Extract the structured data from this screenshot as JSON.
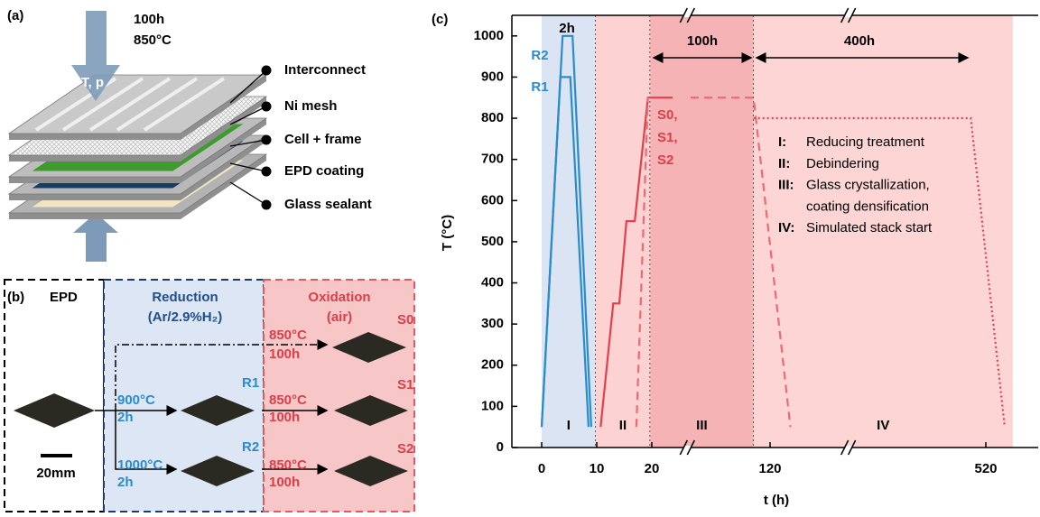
{
  "panel_a": {
    "label": "(a)",
    "time": "100h",
    "temperature": "850°C",
    "load": "T, p",
    "layers": [
      "Interconnect",
      "Ni mesh",
      "Cell + frame",
      "EPD coating",
      "Glass sealant"
    ]
  },
  "panel_b": {
    "label": "(b)",
    "sections": [
      {
        "title": "EPD"
      },
      {
        "title": "Reduction",
        "subtitle": "(Ar/2.9%H₂)"
      },
      {
        "title": "Oxidation",
        "subtitle": "(air)"
      }
    ],
    "scale_bar": "20mm",
    "reduced": [
      {
        "label": "R1",
        "conditions": [
          "900°C",
          "2h"
        ]
      },
      {
        "label": "R2",
        "conditions": [
          "1000°C",
          "2h"
        ]
      }
    ],
    "oxidized": [
      {
        "label": "S0",
        "conditions": [
          "850°C",
          "100h"
        ]
      },
      {
        "label": "S1",
        "conditions": [
          "850°C",
          "100h"
        ]
      },
      {
        "label": "S2",
        "conditions": [
          "850°C",
          "100h"
        ]
      }
    ]
  },
  "chart_data": {
    "type": "line",
    "panel_label": "(c)",
    "x_label": "t (h)",
    "y_label": "T (°C)",
    "xlim": [
      -5,
      617
    ],
    "ylim": [
      0,
      1050
    ],
    "xticks": [
      0,
      10,
      20,
      120,
      520
    ],
    "yticks": [
      0,
      100,
      200,
      300,
      400,
      500,
      600,
      700,
      800,
      900,
      1000
    ],
    "axis_breaks": [
      50,
      265
    ],
    "regions": [
      {
        "label": "I",
        "x": [
          0,
          9.8
        ],
        "color": "#dbe4f3"
      },
      {
        "label": "II",
        "x": [
          9.8,
          19.7
        ],
        "color": "#fcd2d2"
      },
      {
        "label": "III",
        "x": [
          19.7,
          106
        ],
        "color": "#f6b3b5"
      },
      {
        "label": "IV",
        "x": [
          106,
          570
        ],
        "color": "#fdd5d5"
      }
    ],
    "series": [
      {
        "color": "#2a8ccc",
        "style": "solid",
        "x": [
          0,
          3.8,
          5.6,
          9.0
        ],
        "values": [
          50,
          1000,
          1000,
          50
        ]
      },
      {
        "color": "#2a8ccc",
        "style": "solid",
        "x": [
          0,
          3.4,
          5.2,
          8.5
        ],
        "values": [
          50,
          900,
          900,
          50
        ]
      },
      {
        "color": "#e0424c",
        "style": "solid",
        "x": [
          10.7,
          13.0,
          14.1,
          15.4,
          16.9,
          19.3,
          37.6
        ],
        "values": [
          50,
          350,
          350,
          550,
          550,
          850,
          850
        ]
      },
      {
        "color": "#ec6a72",
        "style": "dashed",
        "x": [
          17.2,
          19.3,
          null,
          52.8,
          106,
          157.6
        ],
        "values": [
          50,
          850,
          null,
          850,
          850,
          50
        ]
      },
      {
        "color": "#e0424c",
        "style": "dotted",
        "x": [
          106,
          492,
          555
        ],
        "values": [
          800,
          800,
          50
        ]
      }
    ],
    "annotations": {
      "hold": "2h",
      "stage_III": "100h",
      "stage_IV": "400h",
      "blue_labels": [
        "R2",
        "R1"
      ],
      "red_labels": [
        "S0,",
        "S1,",
        "S2"
      ]
    },
    "descriptions": [
      {
        "key": "I:",
        "text": [
          "Reducing treatment"
        ]
      },
      {
        "key": "II:",
        "text": [
          "Debindering"
        ]
      },
      {
        "key": "III:",
        "text": [
          "Glass crystallization,",
          "coating densification"
        ]
      },
      {
        "key": "IV:",
        "text": [
          "Simulated stack start"
        ]
      }
    ]
  }
}
